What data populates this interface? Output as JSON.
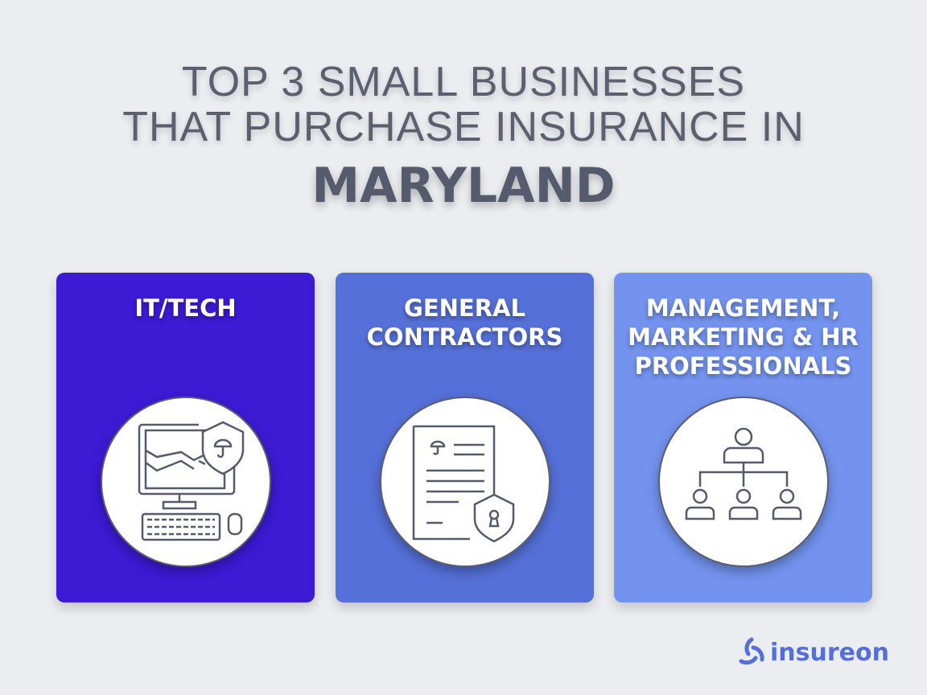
{
  "title": {
    "line1": "TOP 3 SMALL BUSINESSES",
    "line2": "THAT PURCHASE INSURANCE IN",
    "state": "MARYLAND"
  },
  "cards": [
    {
      "label": "IT/TECH",
      "color": "#3d1ad4",
      "icon": "computer-shield-icon"
    },
    {
      "label_lines": [
        "GENERAL",
        "CONTRACTORS"
      ],
      "color": "#5570d8",
      "icon": "contract-shield-icon"
    },
    {
      "label_lines": [
        "MANAGEMENT,",
        "MARKETING & HR",
        "PROFESSIONALS"
      ],
      "color": "#7393ef",
      "icon": "org-chart-icon"
    }
  ],
  "brand": {
    "name": "insureon",
    "color": "#5470d8"
  }
}
